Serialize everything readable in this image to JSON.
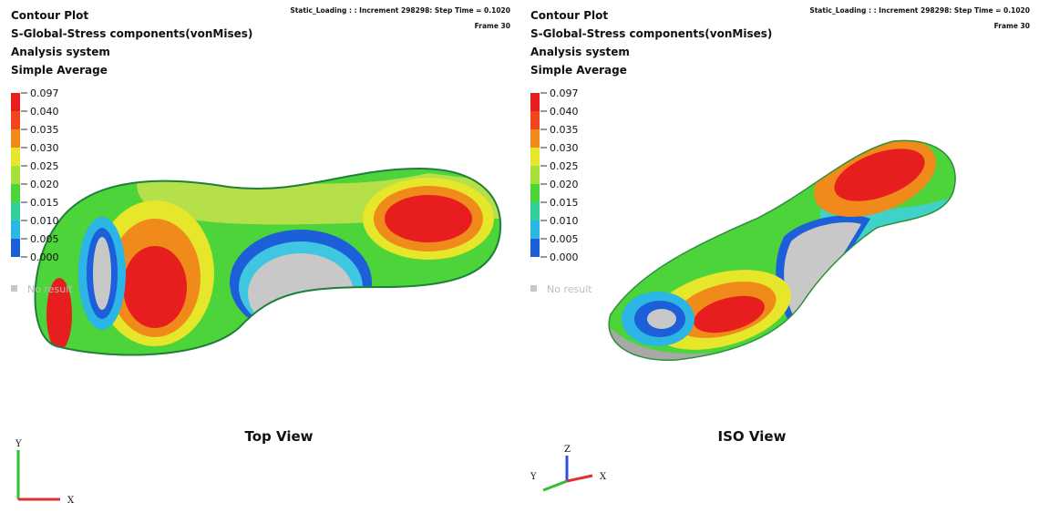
{
  "panels": [
    {
      "header": {
        "lines": [
          "Contour Plot",
          "S-Global-Stress components(vonMises)",
          "Analysis system",
          "Simple Average"
        ],
        "step_info": "Static_Loading : : Increment    298298: Step Time =    0.1020",
        "frame": "Frame 30"
      },
      "legend": {
        "labels": [
          "0.097",
          "0.040",
          "0.035",
          "0.030",
          "0.025",
          "0.020",
          "0.015",
          "0.010",
          "0.005",
          "0.000"
        ],
        "no_result": "No result"
      },
      "caption": "Top View",
      "axes": {
        "y": "Y",
        "x": "X"
      }
    },
    {
      "header": {
        "lines": [
          "Contour Plot",
          "S-Global-Stress components(vonMises)",
          "Analysis system",
          "Simple Average"
        ],
        "step_info": "Static_Loading : : Increment    298298: Step Time =    0.1020",
        "frame": "Frame 30"
      },
      "legend": {
        "labels": [
          "0.097",
          "0.040",
          "0.035",
          "0.030",
          "0.025",
          "0.020",
          "0.015",
          "0.010",
          "0.005",
          "0.000"
        ],
        "no_result": "No result"
      },
      "caption": "ISO View",
      "axes": {
        "z": "Z",
        "y": "Y",
        "x": "X"
      }
    }
  ]
}
